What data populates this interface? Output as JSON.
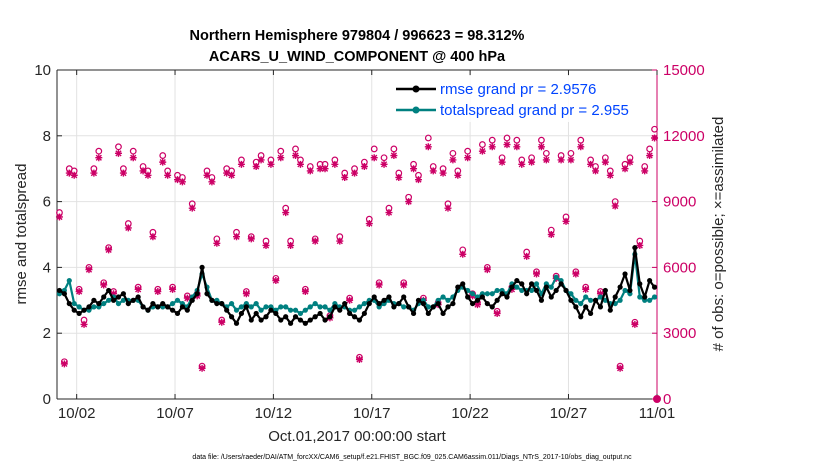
{
  "chart_data": {
    "type": "line",
    "title_line1": "Northern Hemisphere 979804 / 996623 = 98.312%",
    "title_line2": "ACARS_U_WIND_COMPONENT @ 400 hPa",
    "xlabel": "Oct.01,2017 00:00:00 start",
    "ylabel_left": "rmse and totalspread",
    "ylabel_right": "# of obs: o=possible; ×=assimilated",
    "footnote": "data file: /Users/raeder/DAI/ATM_forcXX/CAM6_setup/f.e21.FHIST_BGC.f09_025.CAM6assim.011/Diags_NTrS_2017-10/obs_diag_output.nc",
    "xlim": [
      0.5,
      31.0
    ],
    "ylim_left": [
      0,
      10
    ],
    "ylim_right": [
      0,
      15000
    ],
    "grid": true,
    "x_ticks": [
      1.5,
      6.5,
      11.5,
      16.5,
      21.5,
      26.5,
      31.0
    ],
    "x_tick_labels": [
      "10/02",
      "10/07",
      "10/12",
      "10/17",
      "10/22",
      "10/27",
      "11/01"
    ],
    "y_ticks_left": [
      0,
      2,
      4,
      6,
      8,
      10
    ],
    "y_ticks_right": [
      0,
      3000,
      6000,
      9000,
      12000,
      15000
    ],
    "colors": {
      "rmse": "#000000",
      "spread": "#008080",
      "obs": "#cc0066",
      "legend_text": "#0044ff",
      "axis": "#262626",
      "grid": "#e2e2e2"
    },
    "legend": {
      "placement": "top-right",
      "entries": [
        {
          "label": "rmse grand pr = 2.9576",
          "series": "rmse"
        },
        {
          "label": "totalspread grand pr = 2.955",
          "series": "spread"
        }
      ]
    },
    "series": [
      {
        "name": "rmse",
        "axis": "left",
        "x": [
          0.625,
          0.875,
          1.125,
          1.375,
          1.625,
          1.875,
          2.125,
          2.375,
          2.625,
          2.875,
          3.125,
          3.375,
          3.625,
          3.875,
          4.125,
          4.375,
          4.625,
          4.875,
          5.125,
          5.375,
          5.625,
          5.875,
          6.125,
          6.375,
          6.625,
          6.875,
          7.125,
          7.375,
          7.625,
          7.875,
          8.125,
          8.375,
          8.625,
          8.875,
          9.125,
          9.375,
          9.625,
          9.875,
          10.125,
          10.375,
          10.625,
          10.875,
          11.125,
          11.375,
          11.625,
          11.875,
          12.125,
          12.375,
          12.625,
          12.875,
          13.125,
          13.375,
          13.625,
          13.875,
          14.125,
          14.375,
          14.625,
          14.875,
          15.125,
          15.375,
          15.625,
          15.875,
          16.125,
          16.375,
          16.625,
          16.875,
          17.125,
          17.375,
          17.625,
          17.875,
          18.125,
          18.375,
          18.625,
          18.875,
          19.125,
          19.375,
          19.625,
          19.875,
          20.125,
          20.375,
          20.625,
          20.875,
          21.125,
          21.375,
          21.625,
          21.875,
          22.125,
          22.375,
          22.625,
          22.875,
          23.125,
          23.375,
          23.625,
          23.875,
          24.125,
          24.375,
          24.625,
          24.875,
          25.125,
          25.375,
          25.625,
          25.875,
          26.125,
          26.375,
          26.625,
          26.875,
          27.125,
          27.375,
          27.625,
          27.875,
          28.125,
          28.375,
          28.625,
          28.875,
          29.125,
          29.375,
          29.625,
          29.875,
          30.125,
          30.375,
          30.625,
          30.875
        ],
        "values": [
          3.3,
          3.2,
          2.9,
          2.7,
          2.6,
          2.7,
          2.8,
          3.0,
          2.9,
          3.1,
          3.3,
          3.0,
          3.1,
          3.2,
          2.9,
          3.0,
          3.1,
          2.8,
          2.7,
          2.9,
          2.8,
          2.9,
          2.8,
          2.7,
          2.6,
          2.8,
          2.7,
          3.0,
          3.2,
          4.0,
          3.2,
          3.0,
          2.9,
          2.9,
          2.7,
          2.5,
          2.3,
          2.6,
          2.8,
          2.4,
          2.6,
          2.4,
          2.5,
          2.7,
          2.6,
          2.4,
          2.5,
          2.3,
          2.5,
          2.4,
          2.3,
          2.4,
          2.5,
          2.6,
          2.4,
          2.5,
          2.8,
          2.7,
          2.9,
          2.6,
          2.5,
          2.4,
          2.6,
          2.9,
          3.1,
          2.9,
          3.0,
          3.1,
          2.8,
          2.9,
          3.1,
          2.8,
          2.6,
          3.0,
          2.9,
          2.6,
          2.8,
          2.9,
          2.6,
          2.8,
          2.9,
          3.4,
          3.5,
          3.1,
          2.9,
          3.0,
          3.1,
          2.9,
          2.8,
          3.0,
          3.2,
          3.1,
          3.4,
          3.6,
          3.5,
          3.2,
          3.5,
          3.3,
          3.0,
          3.4,
          3.1,
          3.3,
          3.5,
          3.3,
          3.0,
          2.8,
          2.5,
          2.8,
          2.6,
          3.0,
          2.8,
          3.3,
          2.7,
          3.1,
          3.4,
          3.8,
          3.3,
          4.6,
          3.5,
          3.1,
          3.6,
          3.4
        ]
      },
      {
        "name": "totalspread",
        "axis": "left",
        "x": [
          0.625,
          0.875,
          1.125,
          1.375,
          1.625,
          1.875,
          2.125,
          2.375,
          2.625,
          2.875,
          3.125,
          3.375,
          3.625,
          3.875,
          4.125,
          4.375,
          4.625,
          4.875,
          5.125,
          5.375,
          5.625,
          5.875,
          6.125,
          6.375,
          6.625,
          6.875,
          7.125,
          7.375,
          7.625,
          7.875,
          8.125,
          8.375,
          8.625,
          8.875,
          9.125,
          9.375,
          9.625,
          9.875,
          10.125,
          10.375,
          10.625,
          10.875,
          11.125,
          11.375,
          11.625,
          11.875,
          12.125,
          12.375,
          12.625,
          12.875,
          13.125,
          13.375,
          13.625,
          13.875,
          14.125,
          14.375,
          14.625,
          14.875,
          15.125,
          15.375,
          15.625,
          15.875,
          16.125,
          16.375,
          16.625,
          16.875,
          17.125,
          17.375,
          17.625,
          17.875,
          18.125,
          18.375,
          18.625,
          18.875,
          19.125,
          19.375,
          19.625,
          19.875,
          20.125,
          20.375,
          20.625,
          20.875,
          21.125,
          21.375,
          21.625,
          21.875,
          22.125,
          22.375,
          22.625,
          22.875,
          23.125,
          23.375,
          23.625,
          23.875,
          24.125,
          24.375,
          24.625,
          24.875,
          25.125,
          25.375,
          25.625,
          25.875,
          26.125,
          26.375,
          26.625,
          26.875,
          27.125,
          27.375,
          27.625,
          27.875,
          28.125,
          28.375,
          28.625,
          28.875,
          29.125,
          29.375,
          29.625,
          29.875,
          30.125,
          30.375,
          30.625,
          30.875
        ],
        "values": [
          3.2,
          3.3,
          3.6,
          2.9,
          2.8,
          2.7,
          2.7,
          2.8,
          2.8,
          2.9,
          3.0,
          3.1,
          2.9,
          3.0,
          3.0,
          3.0,
          3.0,
          2.8,
          2.7,
          2.8,
          2.8,
          2.8,
          2.8,
          2.9,
          3.0,
          2.9,
          2.8,
          3.1,
          3.3,
          3.8,
          3.4,
          3.0,
          3.0,
          2.9,
          2.8,
          2.9,
          2.7,
          2.8,
          2.9,
          2.8,
          2.9,
          2.7,
          2.8,
          2.8,
          2.7,
          2.8,
          2.8,
          2.7,
          2.7,
          2.6,
          2.7,
          2.8,
          2.9,
          2.8,
          2.8,
          2.7,
          2.9,
          2.8,
          2.8,
          2.7,
          2.7,
          2.8,
          2.9,
          3.0,
          3.0,
          2.8,
          2.9,
          3.0,
          2.9,
          2.9,
          2.8,
          2.8,
          2.7,
          2.9,
          3.0,
          2.8,
          2.8,
          3.0,
          3.1,
          3.0,
          3.1,
          3.3,
          3.4,
          3.3,
          3.2,
          3.1,
          3.2,
          3.2,
          3.2,
          3.3,
          3.3,
          3.2,
          3.5,
          3.4,
          3.3,
          3.3,
          3.3,
          3.5,
          3.2,
          3.5,
          3.4,
          3.7,
          3.6,
          3.3,
          3.2,
          3.0,
          2.9,
          3.1,
          3.0,
          3.0,
          3.1,
          3.0,
          2.9,
          2.9,
          3.0,
          3.3,
          3.2,
          4.4,
          3.1,
          3.0,
          3.0,
          3.1
        ]
      },
      {
        "name": "possible",
        "axis": "right",
        "x": [
          0.625,
          0.875,
          1.125,
          1.375,
          1.625,
          1.875,
          2.125,
          2.375,
          2.625,
          2.875,
          3.125,
          3.375,
          3.625,
          3.875,
          4.125,
          4.375,
          4.625,
          4.875,
          5.125,
          5.375,
          5.625,
          5.875,
          6.125,
          6.375,
          6.625,
          6.875,
          7.125,
          7.375,
          7.625,
          7.875,
          8.125,
          8.375,
          8.625,
          8.875,
          9.125,
          9.375,
          9.625,
          9.875,
          10.125,
          10.375,
          10.625,
          10.875,
          11.125,
          11.375,
          11.625,
          11.875,
          12.125,
          12.375,
          12.625,
          12.875,
          13.125,
          13.375,
          13.625,
          13.875,
          14.125,
          14.375,
          14.625,
          14.875,
          15.125,
          15.375,
          15.625,
          15.875,
          16.125,
          16.375,
          16.625,
          16.875,
          17.125,
          17.375,
          17.625,
          17.875,
          18.125,
          18.375,
          18.625,
          18.875,
          19.125,
          19.375,
          19.625,
          19.875,
          20.125,
          20.375,
          20.625,
          20.875,
          21.125,
          21.375,
          21.625,
          21.875,
          22.125,
          22.375,
          22.625,
          22.875,
          23.125,
          23.375,
          23.625,
          23.875,
          24.125,
          24.375,
          24.625,
          24.875,
          25.125,
          25.375,
          25.625,
          25.875,
          26.125,
          26.375,
          26.625,
          26.875,
          27.125,
          27.375,
          27.625,
          27.875,
          28.125,
          28.375,
          28.625,
          28.875,
          29.125,
          29.375,
          29.625,
          29.875,
          30.125,
          30.375,
          30.625,
          30.875
        ],
        "values": [
          8500,
          1700,
          10500,
          10400,
          5000,
          3600,
          6000,
          10500,
          11300,
          5300,
          6900,
          4900,
          11500,
          10500,
          8000,
          11300,
          5100,
          10600,
          10400,
          7600,
          5000,
          11100,
          10400,
          5100,
          10200,
          10100,
          4700,
          8900,
          4800,
          1500,
          10400,
          10100,
          7300,
          3600,
          10500,
          10400,
          7600,
          10900,
          4900,
          7400,
          10800,
          11100,
          7200,
          10900,
          5500,
          11300,
          8700,
          7200,
          11400,
          10900,
          5000,
          10600,
          7300,
          10700,
          10700,
          3800,
          10900,
          7400,
          10300,
          4600,
          10500,
          1900,
          10800,
          8200,
          11400,
          5300,
          11000,
          8700,
          11400,
          10300,
          5300,
          9200,
          10700,
          10200,
          4600,
          11900,
          10600,
          4400,
          10500,
          8900,
          11200,
          10400,
          6800,
          11300,
          4800,
          4400,
          11600,
          6000,
          11800,
          4000,
          11000,
          11900,
          5100,
          11800,
          10900,
          6700,
          11000,
          5800,
          11800,
          11200,
          7700,
          5600,
          11100,
          8300,
          11200,
          5800,
          11800,
          5100,
          10900,
          10600,
          4900,
          11000,
          10400,
          9000,
          1500,
          10700,
          11000,
          3500,
          7200,
          10600,
          11400,
          12300
        ]
      },
      {
        "name": "assimilated",
        "axis": "right",
        "x": [
          0.625,
          0.875,
          1.125,
          1.375,
          1.625,
          1.875,
          2.125,
          2.375,
          2.625,
          2.875,
          3.125,
          3.375,
          3.625,
          3.875,
          4.125,
          4.375,
          4.625,
          4.875,
          5.125,
          5.375,
          5.625,
          5.875,
          6.125,
          6.375,
          6.625,
          6.875,
          7.125,
          7.375,
          7.625,
          7.875,
          8.125,
          8.375,
          8.625,
          8.875,
          9.125,
          9.375,
          9.625,
          9.875,
          10.125,
          10.375,
          10.625,
          10.875,
          11.125,
          11.375,
          11.625,
          11.875,
          12.125,
          12.375,
          12.625,
          12.875,
          13.125,
          13.375,
          13.625,
          13.875,
          14.125,
          14.375,
          14.625,
          14.875,
          15.125,
          15.375,
          15.625,
          15.875,
          16.125,
          16.375,
          16.625,
          16.875,
          17.125,
          17.375,
          17.625,
          17.875,
          18.125,
          18.375,
          18.625,
          18.875,
          19.125,
          19.375,
          19.625,
          19.875,
          20.125,
          20.375,
          20.625,
          20.875,
          21.125,
          21.375,
          21.625,
          21.875,
          22.125,
          22.375,
          22.625,
          22.875,
          23.125,
          23.375,
          23.625,
          23.875,
          24.125,
          24.375,
          24.625,
          24.875,
          25.125,
          25.375,
          25.625,
          25.875,
          26.125,
          26.375,
          26.625,
          26.875,
          27.125,
          27.375,
          27.625,
          27.875,
          28.125,
          28.375,
          28.625,
          28.875,
          29.125,
          29.375,
          29.625,
          29.875,
          30.125,
          30.375,
          30.625,
          30.875
        ],
        "values": [
          8300,
          1600,
          10300,
          10200,
          4900,
          3400,
          5900,
          10300,
          11000,
          5200,
          6800,
          4800,
          11200,
          10300,
          7800,
          11000,
          5000,
          10400,
          10200,
          7400,
          4900,
          10800,
          10200,
          5000,
          10000,
          9900,
          4600,
          8700,
          4700,
          1400,
          10200,
          9900,
          7100,
          3500,
          10300,
          10200,
          7400,
          10700,
          4800,
          7300,
          10600,
          10900,
          7000,
          10700,
          5400,
          11000,
          8500,
          7000,
          11100,
          10700,
          4900,
          10400,
          7200,
          10500,
          10500,
          3700,
          10700,
          7200,
          10100,
          4500,
          10300,
          1800,
          10600,
          8000,
          11000,
          5200,
          10700,
          8500,
          11100,
          10100,
          5200,
          9000,
          10500,
          10000,
          4500,
          11500,
          10400,
          4300,
          10300,
          8700,
          10900,
          10200,
          6600,
          11000,
          4700,
          4300,
          11300,
          5900,
          11500,
          3900,
          10800,
          11600,
          5000,
          11500,
          10700,
          6500,
          10800,
          5700,
          11500,
          10900,
          7500,
          5500,
          10900,
          8100,
          10900,
          5700,
          11500,
          5000,
          10700,
          10400,
          4800,
          10800,
          10200,
          8800,
          1400,
          10500,
          10800,
          3400,
          7000,
          10400,
          11100,
          11900
        ]
      }
    ]
  }
}
